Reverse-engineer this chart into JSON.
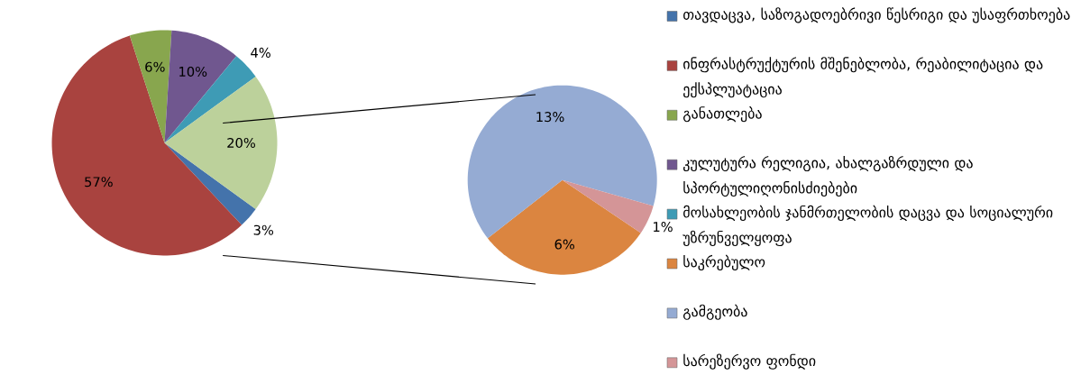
{
  "chart_data": [
    {
      "type": "pie",
      "categories": [
        "თავდაცვა, საზოგადოებრივი წესრიგი და უსაფრთხოება",
        "ინფრასტრუქტურის მშენებლობა, რეაბილიტაცია და ექსპლუატაცია",
        "განათლება",
        "კულუტურა რელიგია, ახალგაზრდული და სპორტულიღონისძიებები",
        "მოსახლეობის ჯანმრთელობის დაცვა და სოციალური უზრუნველყოფა",
        null
      ],
      "values": [
        3,
        57,
        6,
        10,
        4,
        20
      ],
      "colors": [
        "#4473ab",
        "#a9433f",
        "#88a64e",
        "#70578f",
        "#3e9bb5",
        "#bcd19b"
      ],
      "value_labels": [
        "3%",
        "57%",
        "6%",
        "10%",
        "4%",
        "20%"
      ],
      "legend": "right"
    },
    {
      "type": "pie",
      "categories": [
        "საკრებულო",
        "გამგეობა",
        "სარეზერვო ფონდი"
      ],
      "values": [
        6,
        13,
        1
      ],
      "colors": [
        "#db8540",
        "#95abd3",
        "#d49597"
      ],
      "value_labels": [
        "6%",
        "13%",
        "1%"
      ],
      "legend": "right"
    }
  ]
}
